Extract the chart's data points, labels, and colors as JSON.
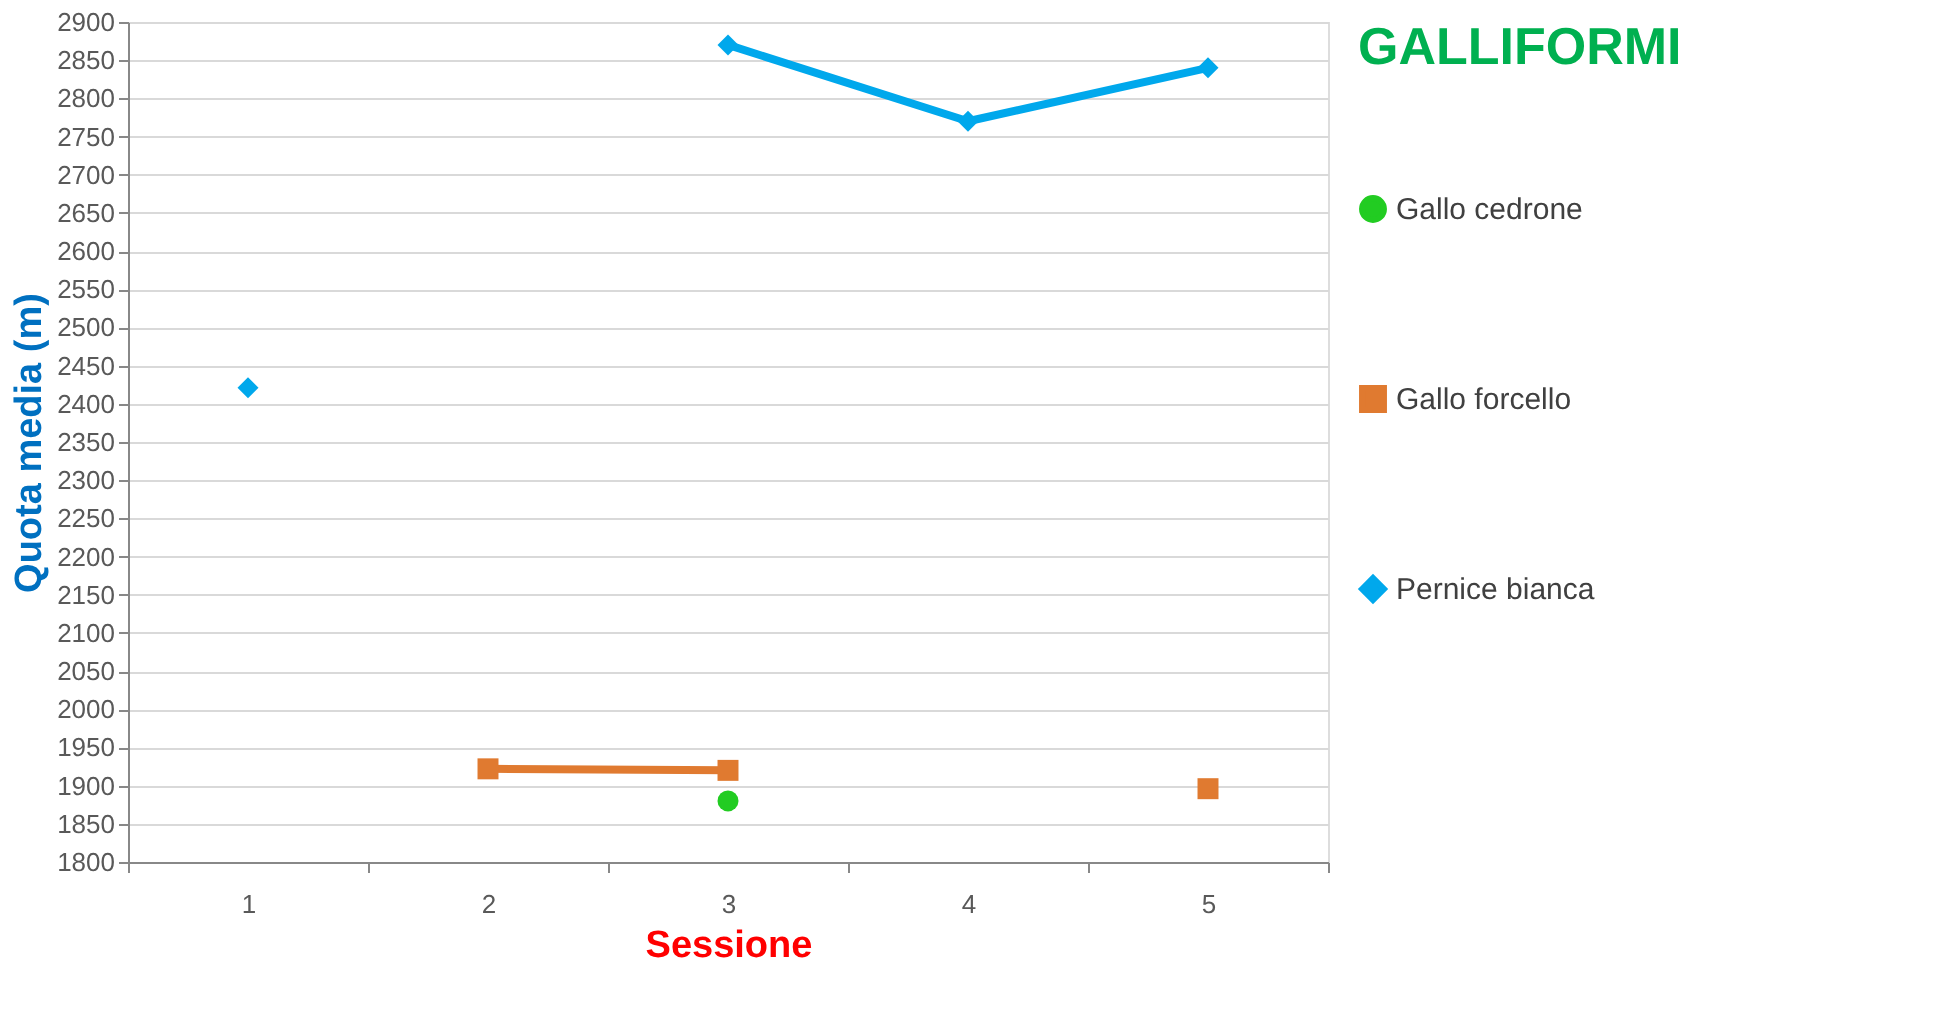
{
  "chart_data": {
    "type": "line",
    "legend_title": "GALLIFORMI",
    "xlabel": "Sessione",
    "ylabel": "Quota media (m)",
    "categories": [
      "1",
      "2",
      "3",
      "4",
      "5"
    ],
    "series": [
      {
        "name": "Gallo cedrone",
        "color": "#22cc22",
        "marker": "circle",
        "values": [
          null,
          null,
          1880,
          null,
          null
        ]
      },
      {
        "name": "Gallo forcello",
        "color": "#e07a30",
        "marker": "square",
        "values": [
          null,
          1922,
          1920,
          null,
          1896
        ]
      },
      {
        "name": "Pernice bianca",
        "color": "#00a8ec",
        "marker": "diamond",
        "values": [
          2421,
          null,
          2870,
          2770,
          2840
        ]
      }
    ],
    "ylim": [
      1800,
      2900
    ],
    "yticks": [
      1800,
      1850,
      1900,
      1950,
      2000,
      2050,
      2100,
      2150,
      2200,
      2250,
      2300,
      2350,
      2400,
      2450,
      2500,
      2550,
      2600,
      2650,
      2700,
      2750,
      2800,
      2850,
      2900
    ],
    "grid": "y",
    "legend": "right",
    "line_style": "solid"
  }
}
